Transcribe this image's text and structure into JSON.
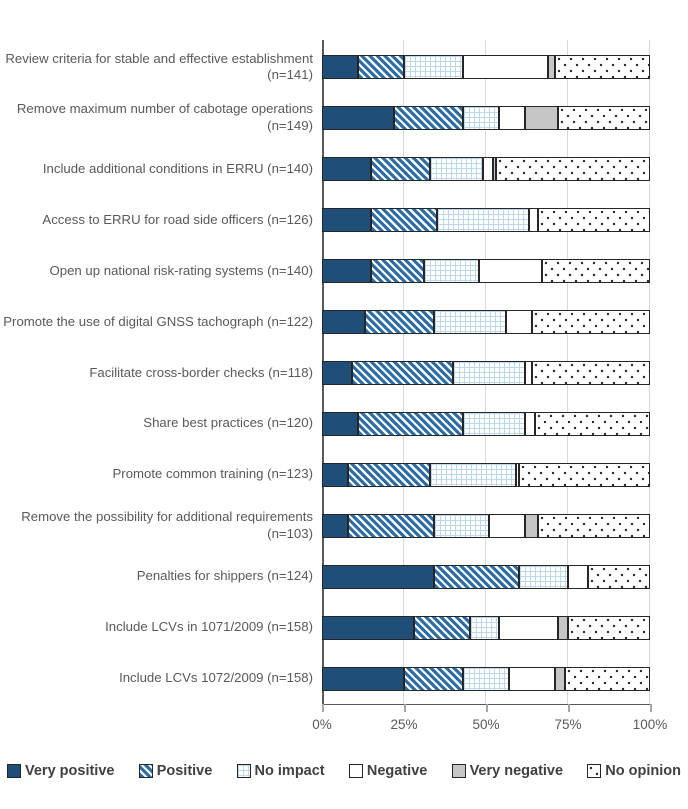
{
  "chart_data": {
    "type": "bar",
    "orientation": "horizontal",
    "stacked": true,
    "unit": "percent",
    "xlim": [
      0,
      100
    ],
    "x_ticks": [
      "0%",
      "25%",
      "50%",
      "75%",
      "100%"
    ],
    "grid": "vertical-gridlines-on",
    "legend_position": "bottom",
    "title": "",
    "xlabel": "",
    "ylabel": "",
    "categories": [
      "Review criteria for stable and effective establishment (n=141)",
      "Remove maximum number of cabotage operations (n=149)",
      "Include additional conditions in ERRU (n=140)",
      "Access to ERRU for road side officers (n=126)",
      "Open up national risk-rating systems (n=140)",
      "Promote the use of digital GNSS tachograph (n=122)",
      "Facilitate cross-border checks (n=118)",
      "Share best practices (n=120)",
      "Promote common training (n=123)",
      "Remove the possibility for additional requirements (n=103)",
      "Penalties for shippers (n=124)",
      "Include LCVs in 1071/2009 (n=158)",
      "Include LCVs 1072/2009 (n=158)"
    ],
    "series": [
      {
        "name": "Very positive",
        "pattern": "solid",
        "color": "#1F4E79",
        "values": [
          11,
          22,
          15,
          15,
          15,
          13,
          9,
          11,
          8,
          8,
          34,
          28,
          25
        ]
      },
      {
        "name": "Positive",
        "pattern": "diagonal-hatch",
        "color": "#2E6DA4",
        "values": [
          14,
          21,
          18,
          20,
          16,
          21,
          31,
          32,
          25,
          26,
          26,
          17,
          18
        ]
      },
      {
        "name": "No impact",
        "pattern": "grid-crosshatch",
        "color": "#BDD7EE",
        "values": [
          18,
          11,
          16,
          28,
          17,
          22,
          22,
          19,
          26,
          17,
          15,
          9,
          14
        ]
      },
      {
        "name": "Negative",
        "pattern": "solid",
        "color": "#FFFFFF",
        "values": [
          26,
          8,
          3,
          3,
          19,
          8,
          2,
          3,
          1,
          11,
          6,
          18,
          14
        ]
      },
      {
        "name": "Very negative",
        "pattern": "solid",
        "color": "#C6C6C6",
        "values": [
          2,
          10,
          1,
          0,
          0,
          0,
          0,
          0,
          0,
          4,
          0,
          3,
          3
        ]
      },
      {
        "name": "No opinion",
        "pattern": "dots",
        "color": "#FFFFFF",
        "values": [
          29,
          28,
          47,
          34,
          33,
          36,
          36,
          35,
          40,
          34,
          19,
          25,
          26
        ]
      }
    ],
    "axis_color": "#595959",
    "gridline_color": "#D9D9D9",
    "label_text_color": "#595959",
    "legend_text_color": "#404040"
  }
}
